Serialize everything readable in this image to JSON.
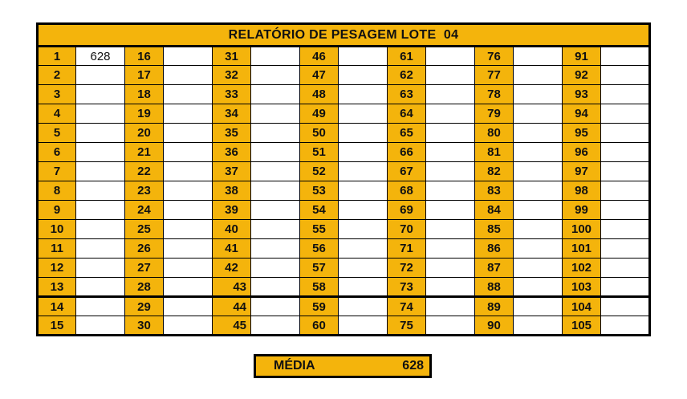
{
  "title": "RELATÓRIO DE PESAGEM LOTE  04",
  "colors": {
    "accent": "#F4B40C",
    "border": "#000000",
    "background": "#FFFFFF",
    "text": "#111111"
  },
  "table": {
    "row_count": 15,
    "thick_divider_after_row": 13,
    "groups": [
      {
        "cells": [
          {
            "label": "1",
            "value": "628"
          },
          {
            "label": "2",
            "value": ""
          },
          {
            "label": "3",
            "value": ""
          },
          {
            "label": "4",
            "value": ""
          },
          {
            "label": "5",
            "value": ""
          },
          {
            "label": "6",
            "value": ""
          },
          {
            "label": "7",
            "value": ""
          },
          {
            "label": "8",
            "value": ""
          },
          {
            "label": "9",
            "value": ""
          },
          {
            "label": "10",
            "value": ""
          },
          {
            "label": "11",
            "value": ""
          },
          {
            "label": "12",
            "value": ""
          },
          {
            "label": "13",
            "value": ""
          },
          {
            "label": "14",
            "value": ""
          },
          {
            "label": "15",
            "value": ""
          }
        ]
      },
      {
        "cells": [
          {
            "label": "16",
            "value": ""
          },
          {
            "label": "17",
            "value": ""
          },
          {
            "label": "18",
            "value": ""
          },
          {
            "label": "19",
            "value": ""
          },
          {
            "label": "20",
            "value": ""
          },
          {
            "label": "21",
            "value": ""
          },
          {
            "label": "22",
            "value": ""
          },
          {
            "label": "23",
            "value": ""
          },
          {
            "label": "24",
            "value": ""
          },
          {
            "label": "25",
            "value": ""
          },
          {
            "label": "26",
            "value": ""
          },
          {
            "label": "27",
            "value": ""
          },
          {
            "label": "28",
            "value": ""
          },
          {
            "label": "29",
            "value": ""
          },
          {
            "label": "30",
            "value": ""
          }
        ]
      },
      {
        "cells": [
          {
            "label": "31",
            "value": ""
          },
          {
            "label": "32",
            "value": ""
          },
          {
            "label": "33",
            "value": ""
          },
          {
            "label": "34",
            "value": ""
          },
          {
            "label": "35",
            "value": ""
          },
          {
            "label": "36",
            "value": ""
          },
          {
            "label": "37",
            "value": ""
          },
          {
            "label": "38",
            "value": ""
          },
          {
            "label": "39",
            "value": ""
          },
          {
            "label": "40",
            "value": ""
          },
          {
            "label": "41",
            "value": ""
          },
          {
            "label": "42",
            "value": ""
          },
          {
            "label": "43",
            "value": "",
            "align": "right"
          },
          {
            "label": "44",
            "value": "",
            "align": "right"
          },
          {
            "label": "45",
            "value": "",
            "align": "right"
          }
        ]
      },
      {
        "cells": [
          {
            "label": "46",
            "value": ""
          },
          {
            "label": "47",
            "value": ""
          },
          {
            "label": "48",
            "value": ""
          },
          {
            "label": "49",
            "value": ""
          },
          {
            "label": "50",
            "value": ""
          },
          {
            "label": "51",
            "value": ""
          },
          {
            "label": "52",
            "value": ""
          },
          {
            "label": "53",
            "value": ""
          },
          {
            "label": "54",
            "value": ""
          },
          {
            "label": "55",
            "value": ""
          },
          {
            "label": "56",
            "value": ""
          },
          {
            "label": "57",
            "value": ""
          },
          {
            "label": "58",
            "value": ""
          },
          {
            "label": "59",
            "value": ""
          },
          {
            "label": "60",
            "value": ""
          }
        ]
      },
      {
        "cells": [
          {
            "label": "61",
            "value": ""
          },
          {
            "label": "62",
            "value": ""
          },
          {
            "label": "63",
            "value": ""
          },
          {
            "label": "64",
            "value": ""
          },
          {
            "label": "65",
            "value": ""
          },
          {
            "label": "66",
            "value": ""
          },
          {
            "label": "67",
            "value": ""
          },
          {
            "label": "68",
            "value": ""
          },
          {
            "label": "69",
            "value": ""
          },
          {
            "label": "70",
            "value": ""
          },
          {
            "label": "71",
            "value": ""
          },
          {
            "label": "72",
            "value": ""
          },
          {
            "label": "73",
            "value": ""
          },
          {
            "label": "74",
            "value": ""
          },
          {
            "label": "75",
            "value": ""
          }
        ]
      },
      {
        "cells": [
          {
            "label": "76",
            "value": ""
          },
          {
            "label": "77",
            "value": ""
          },
          {
            "label": "78",
            "value": ""
          },
          {
            "label": "79",
            "value": ""
          },
          {
            "label": "80",
            "value": ""
          },
          {
            "label": "81",
            "value": ""
          },
          {
            "label": "82",
            "value": ""
          },
          {
            "label": "83",
            "value": ""
          },
          {
            "label": "84",
            "value": ""
          },
          {
            "label": "85",
            "value": ""
          },
          {
            "label": "86",
            "value": ""
          },
          {
            "label": "87",
            "value": ""
          },
          {
            "label": "88",
            "value": ""
          },
          {
            "label": "89",
            "value": ""
          },
          {
            "label": "90",
            "value": ""
          }
        ]
      },
      {
        "cells": [
          {
            "label": "91",
            "value": ""
          },
          {
            "label": "92",
            "value": ""
          },
          {
            "label": "93",
            "value": ""
          },
          {
            "label": "94",
            "value": ""
          },
          {
            "label": "95",
            "value": ""
          },
          {
            "label": "96",
            "value": ""
          },
          {
            "label": "97",
            "value": ""
          },
          {
            "label": "98",
            "value": ""
          },
          {
            "label": "99",
            "value": ""
          },
          {
            "label": "100",
            "value": ""
          },
          {
            "label": "101",
            "value": ""
          },
          {
            "label": "102",
            "value": ""
          },
          {
            "label": "103",
            "value": ""
          },
          {
            "label": "104",
            "value": ""
          },
          {
            "label": "105",
            "value": ""
          }
        ]
      }
    ]
  },
  "footer": {
    "label": "MÉDIA",
    "value": "628"
  }
}
